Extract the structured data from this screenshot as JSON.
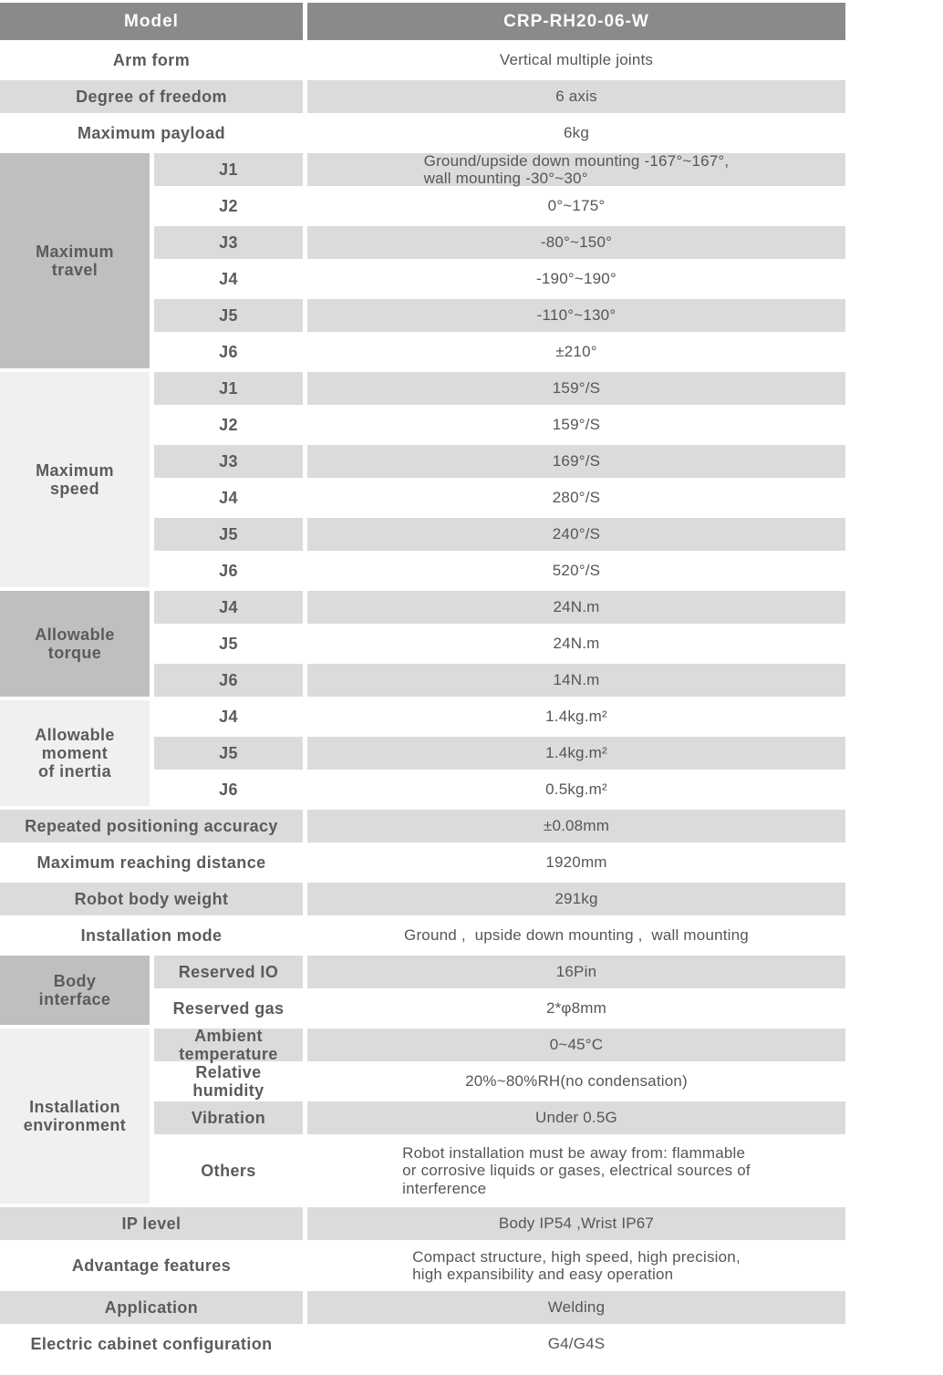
{
  "colors": {
    "header_bg": "#8a8a8a",
    "header_text": "#fdfdfd",
    "row_stripe_bg": "#dbdbdb",
    "group_dark_bg": "#bfbfbf",
    "group_light_bg": "#f0f0f0",
    "text": "#58595c",
    "page_bg": "#ffffff"
  },
  "title_row": {
    "label": "Model",
    "value": "CRP-RH20-06-W"
  },
  "general": {
    "arm_form": {
      "label": "Arm form",
      "value": "Vertical multiple joints"
    },
    "degree_of_freedom": {
      "label": "Degree of freedom",
      "value": "6 axis"
    },
    "maximum_payload": {
      "label": "Maximum payload",
      "value": "6kg"
    }
  },
  "maximum_travel": {
    "label": "Maximum\ntravel",
    "rows": [
      {
        "label": "J1",
        "value": "Ground/upside down mounting -167°~167°,\nwall mounting -30°~30°"
      },
      {
        "label": "J2",
        "value": "0°~175°"
      },
      {
        "label": "J3",
        "value": "-80°~150°"
      },
      {
        "label": "J4",
        "value": "-190°~190°"
      },
      {
        "label": "J5",
        "value": "-110°~130°"
      },
      {
        "label": "J6",
        "value": "±210°"
      }
    ]
  },
  "maximum_speed": {
    "label": "Maximum\nspeed",
    "rows": [
      {
        "label": "J1",
        "value": "159°/S"
      },
      {
        "label": "J2",
        "value": "159°/S"
      },
      {
        "label": "J3",
        "value": "169°/S"
      },
      {
        "label": "J4",
        "value": "280°/S"
      },
      {
        "label": "J5",
        "value": "240°/S"
      },
      {
        "label": "J6",
        "value": "520°/S"
      }
    ]
  },
  "allowable_torque": {
    "label": "Allowable\ntorque",
    "rows": [
      {
        "label": "J4",
        "value": "24N.m"
      },
      {
        "label": "J5",
        "value": "24N.m"
      },
      {
        "label": "J6",
        "value": "14N.m"
      }
    ]
  },
  "allowable_inertia": {
    "label": "Allowable\nmoment\nof inertia",
    "rows": [
      {
        "label": "J4",
        "value": "1.4kg.m²"
      },
      {
        "label": "J5",
        "value": "1.4kg.m²"
      },
      {
        "label": "J6",
        "value": "0.5kg.m²"
      }
    ]
  },
  "summary": {
    "accuracy": {
      "label": "Repeated positioning accuracy",
      "value": "±0.08mm"
    },
    "reach": {
      "label": "Maximum reaching distance",
      "value": "1920mm"
    },
    "weight": {
      "label": "Robot body weight",
      "value": "291kg"
    },
    "installation_mode": {
      "label": "Installation mode",
      "value": "Ground ,  upside down mounting ,  wall mounting"
    }
  },
  "body_interface": {
    "label": "Body\ninterface",
    "rows": [
      {
        "label": "Reserved IO",
        "value": "16Pin"
      },
      {
        "label": "Reserved gas",
        "value": "2*φ8mm"
      }
    ]
  },
  "installation_environment": {
    "label": "Installation\nenvironment",
    "rows": [
      {
        "label": "Ambient\ntemperature",
        "value": "0~45°C"
      },
      {
        "label": "Relative\nhumidity",
        "value": "20%~80%RH(no condensation)"
      },
      {
        "label": "Vibration",
        "value": "Under 0.5G"
      },
      {
        "label": "Others",
        "value": "Robot installation must be away from: flammable\nor corrosive liquids or gases, electrical sources of\ninterference"
      }
    ]
  },
  "footer": {
    "ip_level": {
      "label": "IP level",
      "value": "Body IP54 ,Wrist IP67"
    },
    "advantage_features": {
      "label": "Advantage features",
      "value": "Compact structure, high speed, high precision,\nhigh expansibility and easy operation"
    },
    "application": {
      "label": "Application",
      "value": "Welding"
    },
    "electric_cabinet": {
      "label": "Electric cabinet configuration",
      "value": "G4/G4S"
    }
  }
}
